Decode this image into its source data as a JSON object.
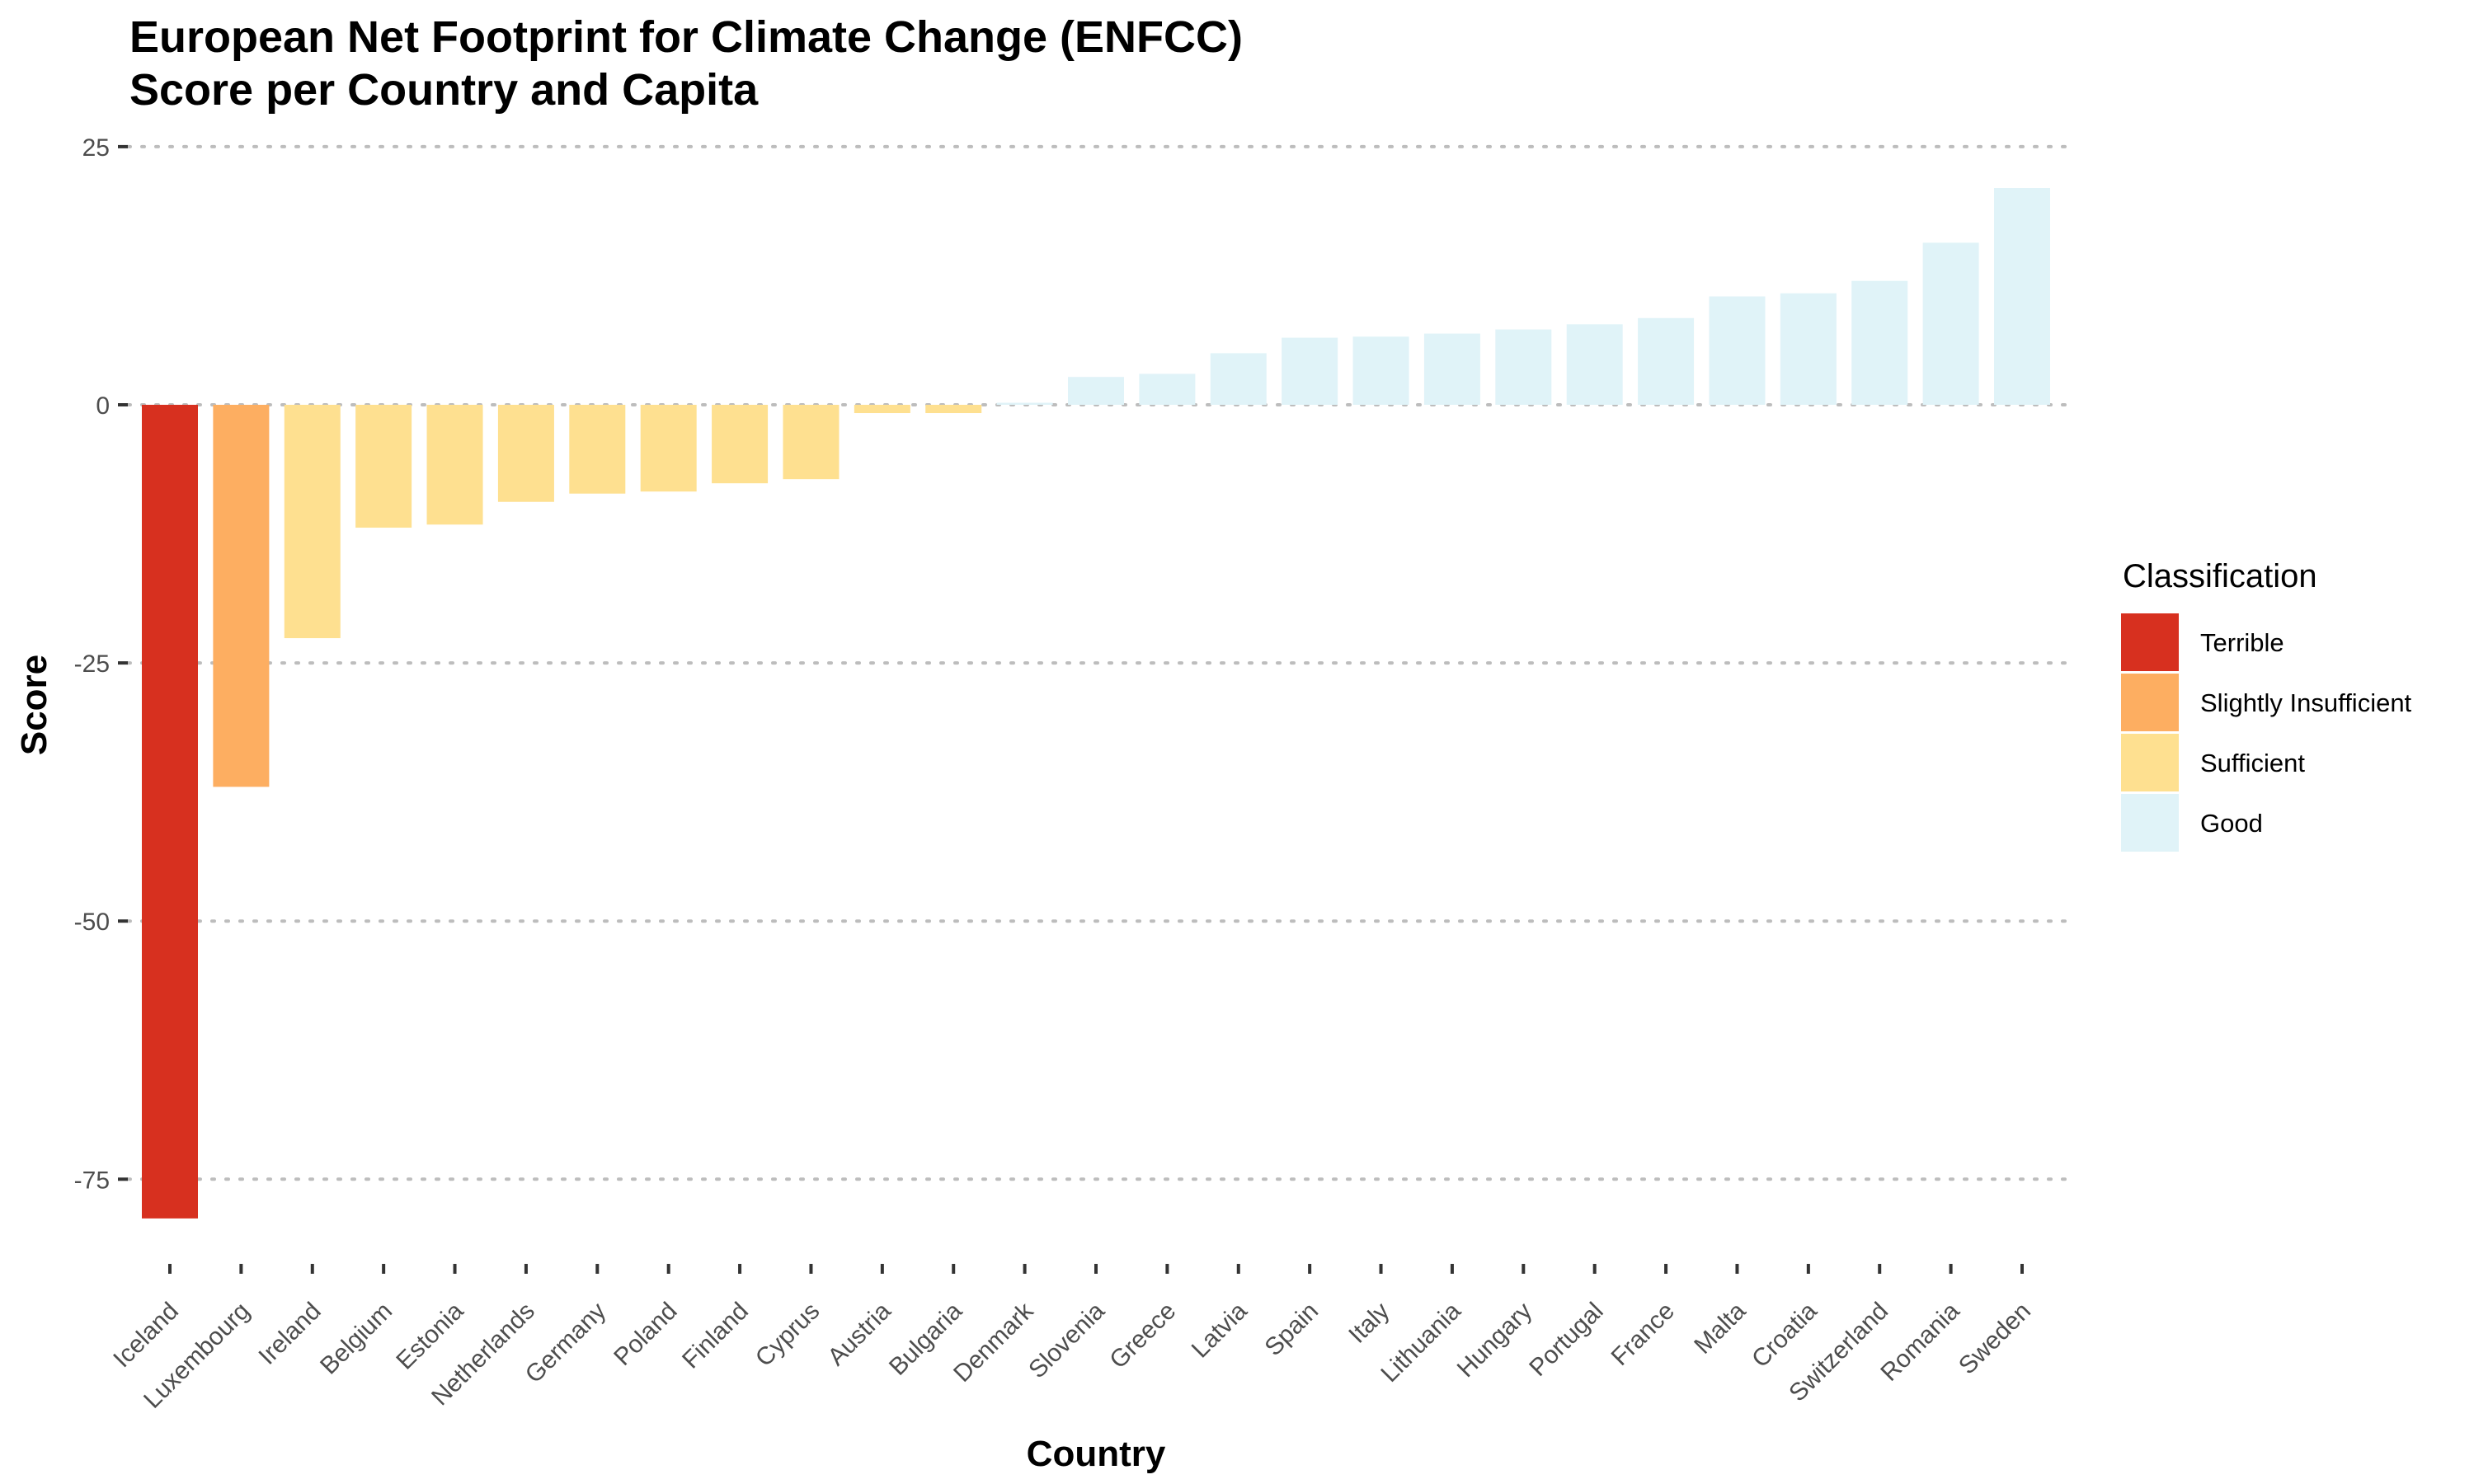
{
  "chart_data": {
    "type": "bar",
    "title": "European Net Footprint for Climate Change (ENFCC)",
    "subtitle": "Score per Country and Capita",
    "xlabel": "Country",
    "ylabel": "Score",
    "ylim": [
      -80,
      27
    ],
    "yticks": [
      25,
      0,
      -25,
      -50,
      -75
    ],
    "grid": "horizontal dotted",
    "legend_title": "Classification",
    "legend_placement": "right",
    "classes": [
      {
        "name": "Terrible",
        "color": "#d7301f"
      },
      {
        "name": "Slightly Insufficient",
        "color": "#fdae61"
      },
      {
        "name": "Sufficient",
        "color": "#fee090"
      },
      {
        "name": "Good",
        "color": "#e0f3f8"
      }
    ],
    "categories": [
      "Iceland",
      "Luxembourg",
      "Ireland",
      "Belgium",
      "Estonia",
      "Netherlands",
      "Germany",
      "Poland",
      "Finland",
      "Cyprus",
      "Austria",
      "Bulgaria",
      "Denmark",
      "Slovenia",
      "Greece",
      "Latvia",
      "Spain",
      "Italy",
      "Lithuania",
      "Hungary",
      "Portugal",
      "France",
      "Malta",
      "Croatia",
      "Switzerland",
      "Romania",
      "Sweden"
    ],
    "values": [
      -78.8,
      -37.0,
      -22.6,
      -11.9,
      -11.6,
      -9.4,
      -8.6,
      -8.4,
      -7.6,
      -7.2,
      -0.8,
      -0.8,
      0.2,
      2.7,
      3.0,
      5.0,
      6.5,
      6.6,
      6.9,
      7.3,
      7.8,
      8.4,
      10.5,
      10.8,
      12.0,
      15.7,
      21.0
    ],
    "classification": [
      "Terrible",
      "Slightly Insufficient",
      "Sufficient",
      "Sufficient",
      "Sufficient",
      "Sufficient",
      "Sufficient",
      "Sufficient",
      "Sufficient",
      "Sufficient",
      "Sufficient",
      "Sufficient",
      "Good",
      "Good",
      "Good",
      "Good",
      "Good",
      "Good",
      "Good",
      "Good",
      "Good",
      "Good",
      "Good",
      "Good",
      "Good",
      "Good",
      "Good"
    ]
  }
}
